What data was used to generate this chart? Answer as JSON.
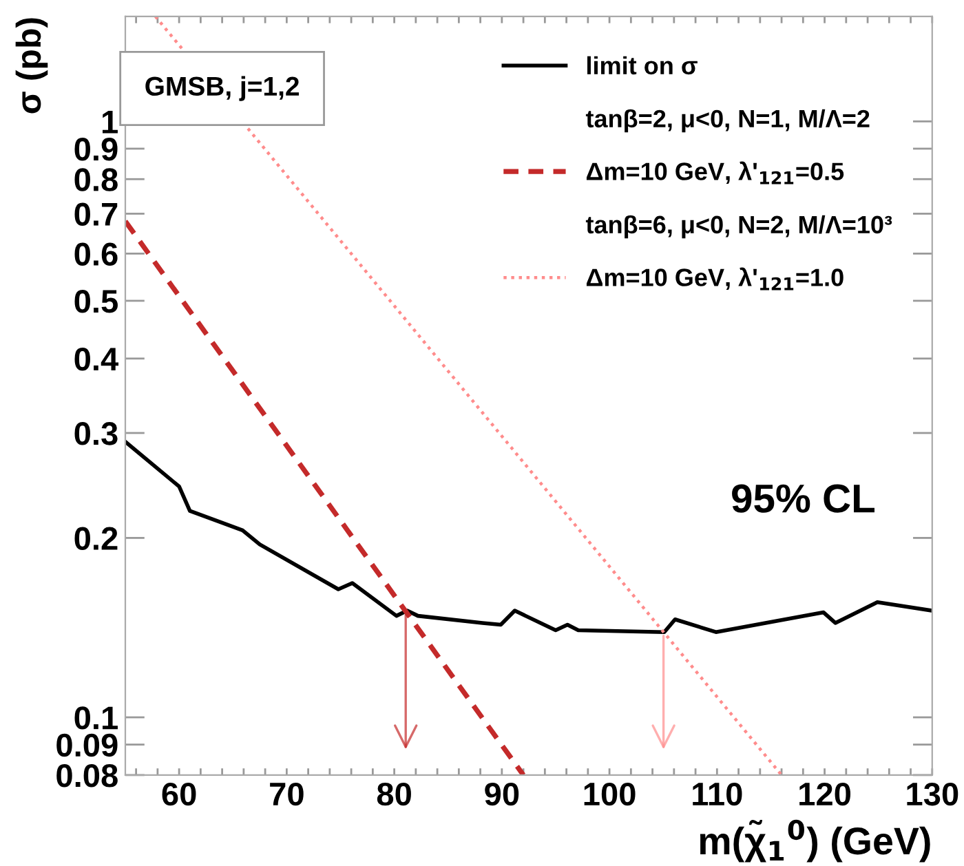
{
  "chart_data": {
    "type": "line",
    "xlabel": "m(χ̃$_{1}$$^{0}$) (GeV)",
    "ylabel": "σ (pb)",
    "log": "y",
    "grid": false,
    "legend": "top right",
    "marker": "none",
    "xlim": [
      55,
      130
    ],
    "xticks": [
      {
        "value": 56,
        "label": null
      },
      {
        "value": 58,
        "label": null
      },
      60,
      {
        "value": 62,
        "label": null
      },
      {
        "value": 64,
        "label": null
      },
      {
        "value": 66,
        "label": null
      },
      {
        "value": 68,
        "label": null
      },
      70,
      {
        "value": 72,
        "label": null
      },
      {
        "value": 74,
        "label": null
      },
      {
        "value": 76,
        "label": null
      },
      {
        "value": 78,
        "label": null
      },
      80,
      {
        "value": 82,
        "label": null
      },
      {
        "value": 84,
        "label": null
      },
      {
        "value": 86,
        "label": null
      },
      {
        "value": 88,
        "label": null
      },
      90,
      {
        "value": 92,
        "label": null
      },
      {
        "value": 94,
        "label": null
      },
      {
        "value": 96,
        "label": null
      },
      {
        "value": 98,
        "label": null
      },
      100,
      {
        "value": 102,
        "label": null
      },
      {
        "value": 104,
        "label": null
      },
      {
        "value": 106,
        "label": null
      },
      {
        "value": 108,
        "label": null
      },
      110,
      {
        "value": 112,
        "label": null
      },
      {
        "value": 114,
        "label": null
      },
      {
        "value": 116,
        "label": null
      },
      {
        "value": 118,
        "label": null
      },
      120,
      {
        "value": 122,
        "label": null
      },
      {
        "value": 124,
        "label": null
      },
      {
        "value": 126,
        "label": null
      },
      {
        "value": 128,
        "label": null
      },
      130
    ],
    "ylim": [
      0.08,
      1.5
    ],
    "yticks": [
      0.08,
      0.09,
      0.1,
      0.2,
      0.3,
      0.4,
      0.5,
      0.6,
      0.7,
      0.8,
      0.9,
      1
    ],
    "annotations": [
      "GMSB, j=1,2",
      "tanβ=2, μ<0, N=1, M/Λ=2",
      "tanβ=6, μ<0, N=2, M/Λ=10³",
      "95% CL"
    ],
    "series": [
      {
        "name": "limit on σ",
        "color": "#000000",
        "line_style": "solid",
        "x": [
          55,
          60,
          61,
          65.9,
          67.5,
          74.8,
          76.1,
          80.2,
          81.2,
          82.2,
          88.2,
          89.9,
          91.2,
          95,
          96.1,
          97.1,
          105.1,
          106.1,
          109.9,
          119.9,
          121,
          124.9,
          130
        ],
        "values": [
          0.29,
          0.244,
          0.222,
          0.206,
          0.195,
          0.164,
          0.168,
          0.148,
          0.151,
          0.148,
          0.144,
          0.143,
          0.151,
          0.14,
          0.143,
          0.14,
          0.139,
          0.146,
          0.139,
          0.15,
          0.144,
          0.156,
          0.151
        ]
      },
      {
        "name": "Δm=10 GeV, λ'$_{121}$=0.5",
        "color": "#c42a2a",
        "line_style": "dashed",
        "x": [
          55,
          92
        ],
        "values": [
          0.68,
          0.08
        ]
      },
      {
        "name": "Δm=10 GeV, λ'$_{121}$=1.0",
        "color": "#ff8c8c",
        "line_style": "dotted",
        "x": [
          57.8,
          116
        ],
        "values": [
          1.5,
          0.08
        ]
      }
    ]
  }
}
